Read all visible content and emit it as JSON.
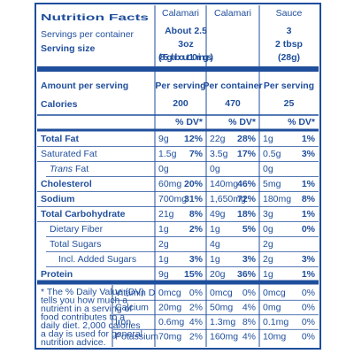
{
  "label": {
    "title": "Nutrition Facts",
    "servings_label": "Servings per container",
    "serving_size_label": "Serving size",
    "amount_label": "Amount per serving",
    "calories_label": "Calories",
    "columns": [
      {
        "name": "Calamari",
        "servings": "About 2.5",
        "size": "3oz",
        "size_note": "(85g/about 10 rings)",
        "per": "Per serving",
        "calories": "200",
        "dv_header": "% DV*"
      },
      {
        "name": "Calamari",
        "per": "Per container",
        "calories": "470",
        "dv_header": "% DV*"
      },
      {
        "name": "Sauce",
        "servings": "3",
        "size": "2 tbsp",
        "size_note": "(28g)",
        "per": "Per serving",
        "calories": "25",
        "dv_header": "% DV*"
      }
    ],
    "nutrients": [
      {
        "name": "Total Fat",
        "bold": true,
        "values": [
          {
            "amount": "9g",
            "dv": "12%"
          },
          {
            "amount": "22g",
            "dv": "28%"
          },
          {
            "amount": "1g",
            "dv": "1%"
          }
        ]
      },
      {
        "name": "Saturated Fat",
        "values": [
          {
            "amount": "1.5g",
            "dv": "7%"
          },
          {
            "amount": "3.5g",
            "dv": "17%"
          },
          {
            "amount": "0.5g",
            "dv": "3%"
          }
        ]
      },
      {
        "name_italic": "Trans",
        "name": "Fat",
        "indent": 1,
        "values": [
          {
            "amount": "0g"
          },
          {
            "amount": "0g"
          },
          {
            "amount": "0g"
          }
        ]
      },
      {
        "name": "Cholesterol",
        "bold": true,
        "values": [
          {
            "amount": "60mg",
            "dv": "20%"
          },
          {
            "amount": "140mg",
            "dv": "46%"
          },
          {
            "amount": "5mg",
            "dv": "1%"
          }
        ]
      },
      {
        "name": "Sodium",
        "bold": true,
        "values": [
          {
            "amount": "700mg",
            "dv": "31%"
          },
          {
            "amount": "1,650mg",
            "dv": "72%"
          },
          {
            "amount": "180mg",
            "dv": "8%"
          }
        ]
      },
      {
        "name": "Total Carbohydrate",
        "bold": true,
        "values": [
          {
            "amount": "21g",
            "dv": "8%"
          },
          {
            "amount": "49g",
            "dv": "18%"
          },
          {
            "amount": "3g",
            "dv": "1%"
          }
        ]
      },
      {
        "name": "Dietary Fiber",
        "indent": 1,
        "values": [
          {
            "amount": "1g",
            "dv": "2%"
          },
          {
            "amount": "1g",
            "dv": "5%"
          },
          {
            "amount": "0g",
            "dv": "0%"
          }
        ]
      },
      {
        "name": "Total Sugars",
        "indent": 1,
        "values": [
          {
            "amount": "2g"
          },
          {
            "amount": "4g"
          },
          {
            "amount": "2g"
          }
        ]
      },
      {
        "name": "Incl. Added Sugars",
        "indent": 2,
        "values": [
          {
            "amount": "1g",
            "dv": "3%"
          },
          {
            "amount": "1g",
            "dv": "3%"
          },
          {
            "amount": "2g",
            "dv": "3%"
          }
        ]
      },
      {
        "name": "Protein",
        "bold": true,
        "values": [
          {
            "amount": "9g",
            "dv": "15%"
          },
          {
            "amount": "20g",
            "dv": "36%"
          },
          {
            "amount": "1g",
            "dv": "1%"
          }
        ]
      }
    ],
    "footnote": [
      "* The % Daily Value (DV)",
      "tells you how much a",
      "nutrient in a serving of",
      "food contributes to a",
      "daily diet. 2,000 calories",
      "a day is used for general",
      "nutrition advice."
    ],
    "vitamins": [
      {
        "name": "Vitamin D",
        "values": [
          {
            "amount": "0mcg",
            "dv": "0%"
          },
          {
            "amount": "0mcg",
            "dv": "0%"
          },
          {
            "amount": "0mcg",
            "dv": "0%"
          }
        ]
      },
      {
        "name": "Calcium",
        "values": [
          {
            "amount": "20mg",
            "dv": "2%"
          },
          {
            "amount": "50mg",
            "dv": "4%"
          },
          {
            "amount": "0mg",
            "dv": "0%"
          }
        ]
      },
      {
        "name": "Iron",
        "values": [
          {
            "amount": "0.6mg",
            "dv": "4%"
          },
          {
            "amount": "1.3mg",
            "dv": "8%"
          },
          {
            "amount": "0.1mg",
            "dv": "0%"
          }
        ]
      },
      {
        "name": "Potassium",
        "values": [
          {
            "amount": "70mg",
            "dv": "2%"
          },
          {
            "amount": "160mg",
            "dv": "4%"
          },
          {
            "amount": "10mg",
            "dv": "0%"
          }
        ]
      }
    ]
  }
}
